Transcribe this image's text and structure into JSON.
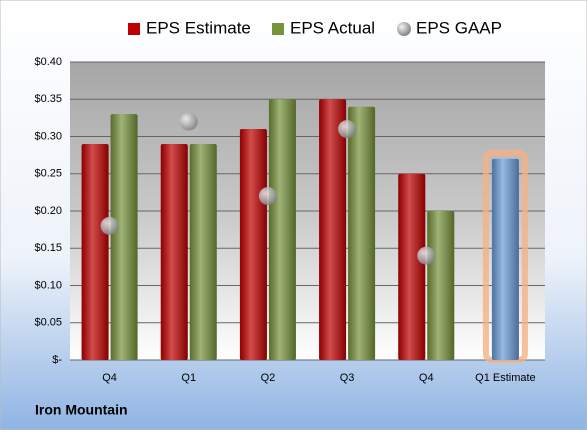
{
  "chart_data": {
    "type": "bar",
    "title": "Iron Mountain",
    "categories": [
      "Q4",
      "Q1",
      "Q2",
      "Q3",
      "Q4",
      "Q1 Estimate"
    ],
    "series": [
      {
        "name": "EPS Estimate",
        "type": "bar",
        "color": "#c00000",
        "colors": [
          "#c00000",
          "#c00000",
          "#c00000",
          "#c00000",
          "#c00000",
          "#6a9bd8"
        ],
        "values": [
          0.29,
          0.29,
          0.31,
          0.35,
          0.25,
          0.27
        ]
      },
      {
        "name": "EPS Actual",
        "type": "bar",
        "color": "#77933c",
        "values": [
          0.33,
          0.29,
          0.35,
          0.34,
          0.2,
          null
        ]
      },
      {
        "name": "EPS GAAP",
        "type": "scatter",
        "color": "#a6a6a6",
        "values": [
          0.18,
          0.32,
          0.22,
          0.31,
          0.14,
          null
        ]
      }
    ],
    "ylim": [
      0,
      0.4
    ],
    "yticks": [
      {
        "value": 0,
        "label": "$-"
      },
      {
        "value": 0.05,
        "label": "$0.05"
      },
      {
        "value": 0.1,
        "label": "$0.10"
      },
      {
        "value": 0.15,
        "label": "$0.15"
      },
      {
        "value": 0.2,
        "label": "$0.20"
      },
      {
        "value": 0.25,
        "label": "$0.25"
      },
      {
        "value": 0.3,
        "label": "$0.30"
      },
      {
        "value": 0.35,
        "label": "$0.35"
      },
      {
        "value": 0.4,
        "label": "$0.40"
      }
    ],
    "grid": true,
    "legend": "top"
  }
}
